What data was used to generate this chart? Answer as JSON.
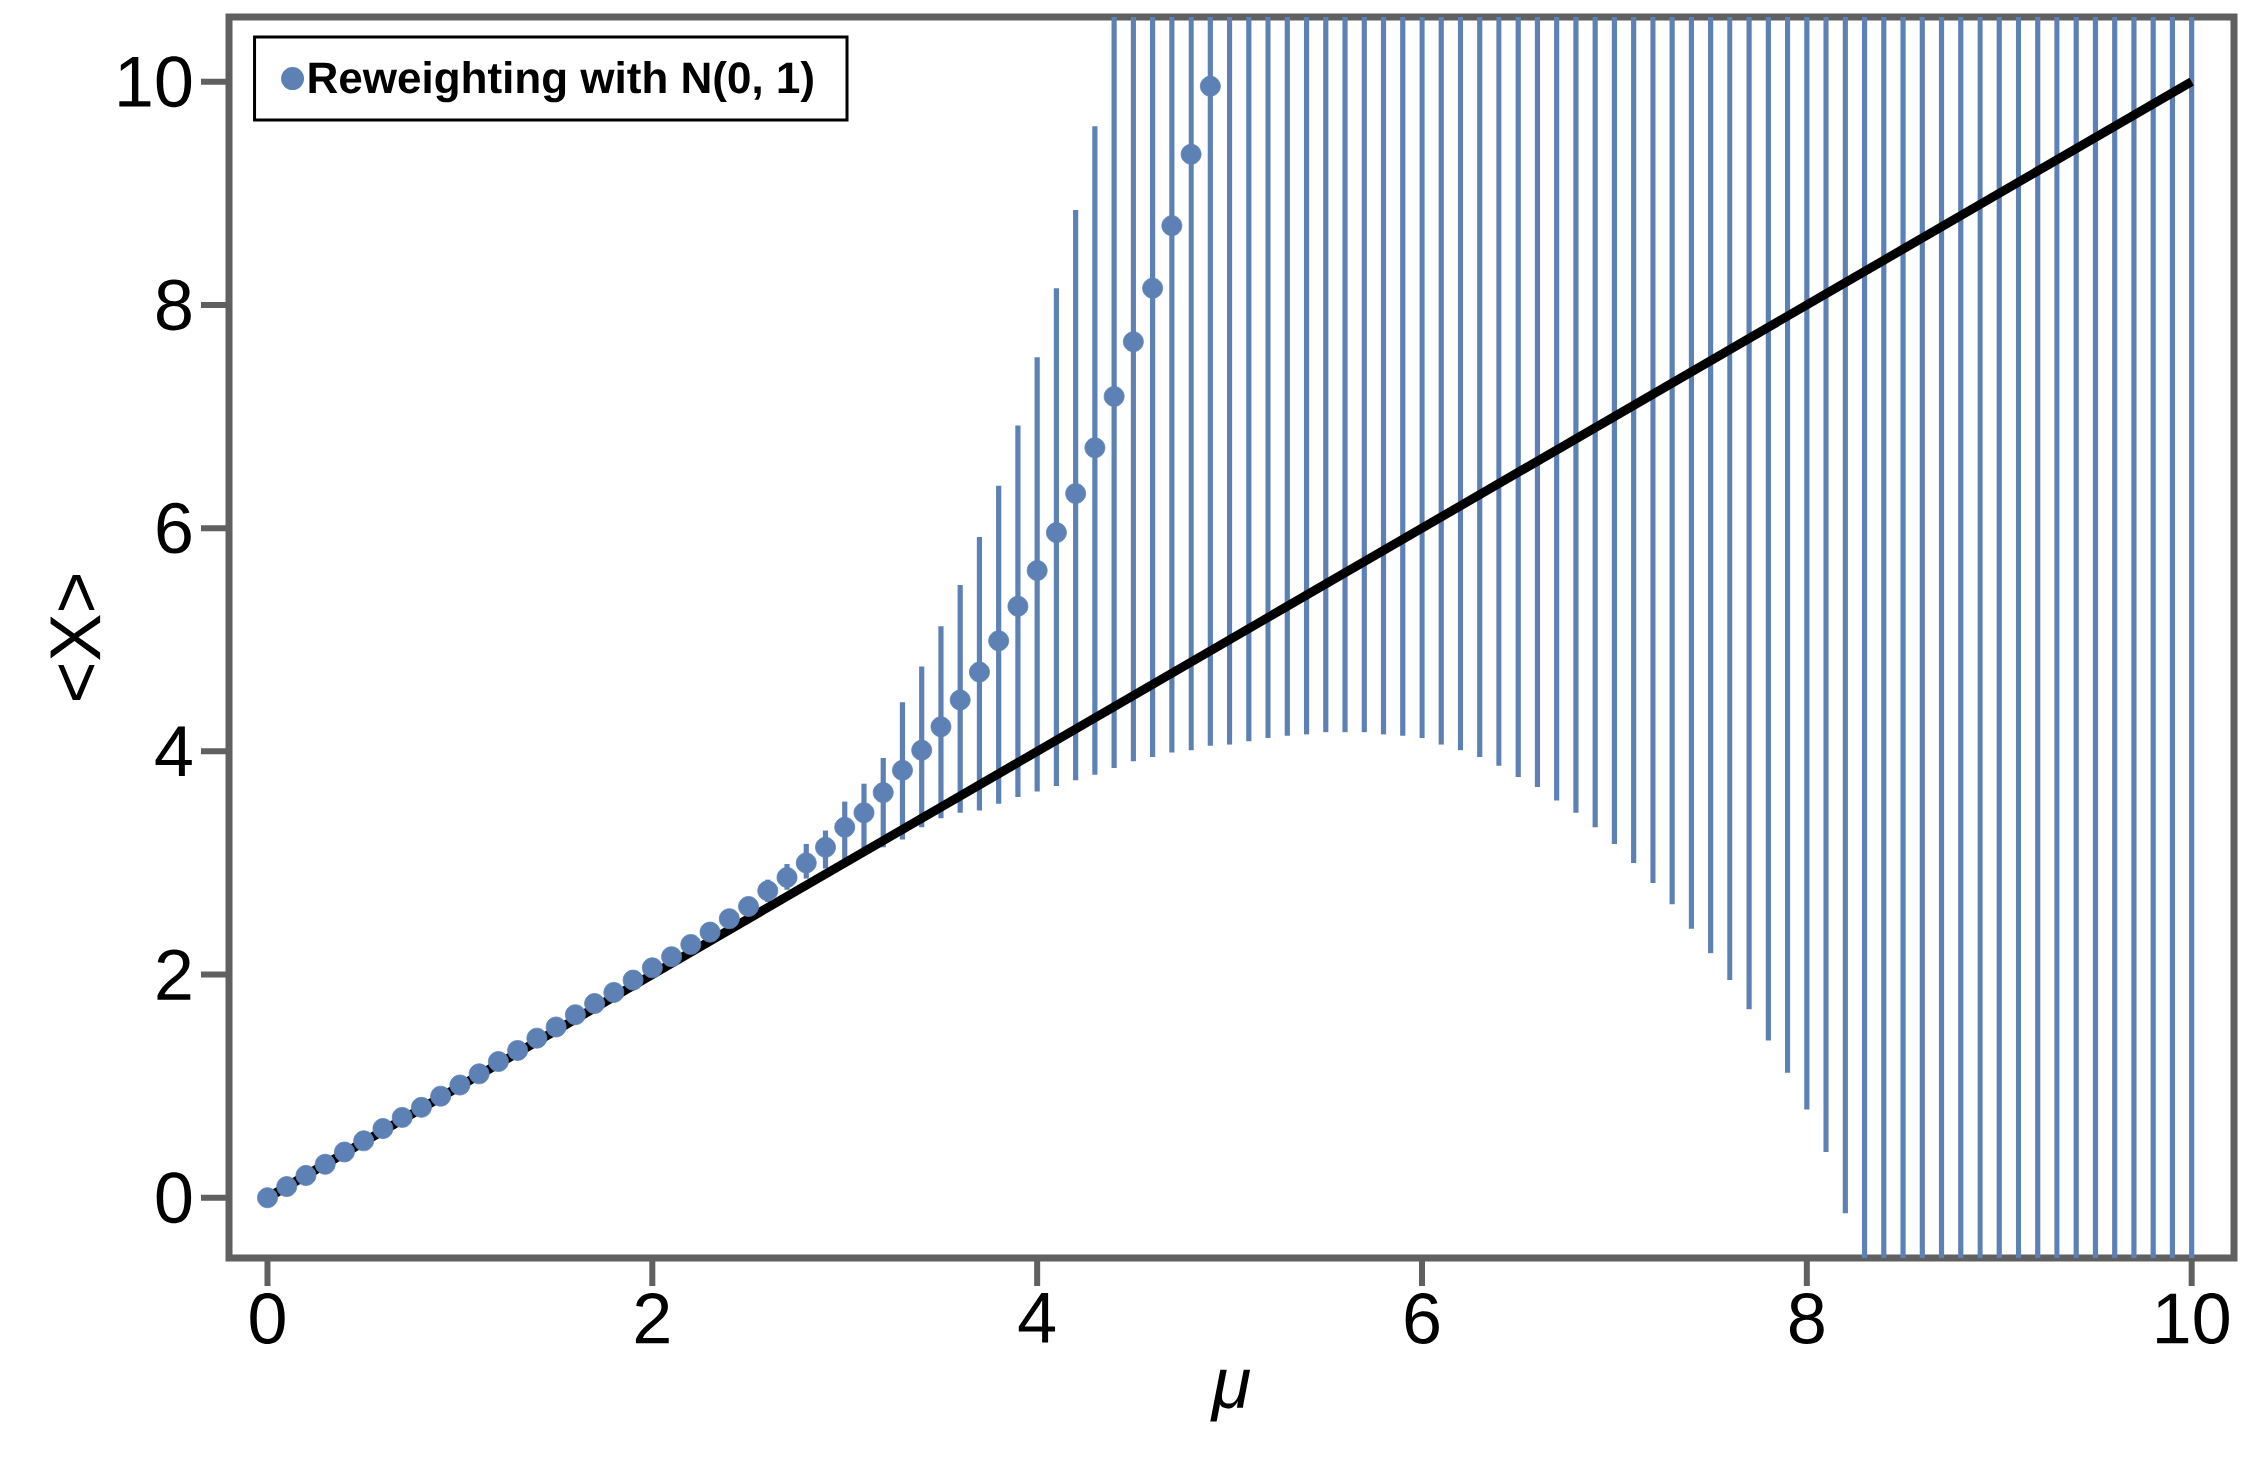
{
  "chart_data": {
    "type": "scatter",
    "xlabel": "μ",
    "ylabel": "<X>",
    "xlim": [
      -0.2,
      10.22
    ],
    "ylim": [
      -0.54,
      10.58
    ],
    "xticks": [
      0,
      2,
      4,
      6,
      8,
      10
    ],
    "yticks": [
      0,
      2,
      4,
      6,
      8,
      10
    ],
    "legend": "top left",
    "series": [
      {
        "name": "Reweighting with N(0, 1)",
        "color": "#5e81b5",
        "marker": "circle",
        "x": [
          0,
          0.1,
          0.2,
          0.3,
          0.4,
          0.5,
          0.6,
          0.7,
          0.8,
          0.9,
          1.0,
          1.1,
          1.2,
          1.3,
          1.4,
          1.5,
          1.6,
          1.7,
          1.8,
          1.9,
          2.0,
          2.1,
          2.2,
          2.3,
          2.4,
          2.5,
          2.6,
          2.7,
          2.8,
          2.9,
          3.0,
          3.1,
          3.2,
          3.3,
          3.4,
          3.5,
          3.6,
          3.7,
          3.8,
          3.9,
          4.0,
          4.1,
          4.2,
          4.3,
          4.4,
          4.5,
          4.6,
          4.7,
          4.8,
          4.9
        ],
        "values": [
          0,
          0.1,
          0.2,
          0.3,
          0.41,
          0.51,
          0.62,
          0.72,
          0.81,
          0.91,
          1.01,
          1.11,
          1.22,
          1.32,
          1.43,
          1.53,
          1.64,
          1.74,
          1.84,
          1.95,
          2.06,
          2.16,
          2.27,
          2.38,
          2.5,
          2.61,
          2.75,
          2.87,
          3.0,
          3.14,
          3.32,
          3.45,
          3.63,
          3.83,
          4.01,
          4.22,
          4.46,
          4.71,
          4.99,
          5.3,
          5.62,
          5.96,
          6.31,
          6.72,
          7.18,
          7.67,
          8.15,
          8.71,
          9.35,
          9.96
        ],
        "errors": [
          null,
          null,
          null,
          null,
          null,
          null,
          null,
          null,
          null,
          null,
          null,
          null,
          null,
          null,
          null,
          null,
          null,
          null,
          null,
          null,
          null,
          null,
          null,
          null,
          null,
          null,
          [
            2.65,
            2.85
          ],
          [
            2.76,
            2.99
          ],
          [
            2.86,
            3.17
          ],
          [
            2.95,
            3.29
          ],
          [
            3.01,
            3.55
          ],
          [
            3.08,
            3.71
          ],
          [
            3.14,
            3.94
          ],
          [
            3.21,
            4.44
          ],
          [
            3.32,
            4.76
          ],
          [
            3.4,
            5.12
          ],
          [
            3.45,
            5.49
          ],
          [
            3.47,
            5.92
          ],
          [
            3.53,
            6.38
          ],
          [
            3.59,
            6.92
          ],
          [
            3.64,
            7.53
          ],
          [
            3.69,
            8.15
          ],
          [
            3.74,
            8.85
          ],
          [
            3.79,
            9.6
          ],
          [
            3.85,
            10.58
          ],
          [
            3.91,
            10.58
          ],
          [
            3.95,
            10.58
          ],
          [
            3.99,
            10.58
          ],
          [
            4.01,
            10.58
          ],
          [
            4.05,
            10.58
          ]
        ]
      },
      {
        "type": "line",
        "color": "#000000",
        "marker": "none",
        "line_style": "solid",
        "x": [
          0,
          10
        ],
        "values": [
          0,
          10
        ]
      },
      {
        "type": "bar",
        "color": "#5e81b5",
        "x": [
          5.0,
          5.1,
          5.2,
          5.3,
          5.4,
          5.5,
          5.6,
          5.7,
          5.8,
          5.9,
          6.0,
          6.1,
          6.2,
          6.3,
          6.4,
          6.5,
          6.6,
          6.7,
          6.8,
          6.9,
          7.0,
          7.1,
          7.2,
          7.3,
          7.4,
          7.5,
          7.6,
          7.7,
          7.8,
          7.9,
          8.0,
          8.1,
          8.2,
          8.3,
          8.4,
          8.5,
          8.6,
          8.7,
          8.8,
          8.9,
          9.0,
          9.1,
          9.2,
          9.3,
          9.4,
          9.5,
          9.6,
          9.7,
          9.8,
          9.9,
          10.0
        ],
        "base": [
          4.06,
          4.09,
          4.12,
          4.14,
          4.15,
          4.17,
          4.17,
          4.17,
          4.15,
          4.14,
          4.12,
          4.06,
          4.01,
          3.95,
          3.87,
          3.77,
          3.68,
          3.56,
          3.45,
          3.32,
          3.17,
          3.0,
          2.82,
          2.63,
          2.41,
          2.19,
          1.95,
          1.69,
          1.41,
          1.12,
          0.79,
          0.41,
          -0.14,
          -0.54,
          -0.54,
          -0.54,
          -0.54,
          -0.54,
          -0.54,
          -0.54,
          -0.54,
          -0.54,
          -0.54,
          -0.54,
          -0.54,
          -0.54,
          -0.54,
          -0.54,
          -0.54,
          -0.54,
          -0.54
        ],
        "values": [
          6.52,
          6.49,
          6.46,
          6.44,
          6.43,
          6.41,
          6.41,
          6.41,
          6.43,
          6.44,
          6.46,
          6.52,
          6.57,
          6.63,
          6.71,
          6.81,
          6.9,
          7.02,
          7.13,
          7.26,
          7.41,
          7.58,
          7.76,
          7.95,
          8.17,
          8.39,
          8.63,
          8.89,
          9.17,
          9.46,
          9.79,
          10.17,
          10.72,
          11.12,
          11.12,
          11.12,
          11.12,
          11.12,
          11.12,
          11.12,
          11.12,
          11.12,
          11.12,
          11.12,
          11.12,
          11.12,
          11.12,
          11.12,
          11.12,
          11.12,
          11.12
        ]
      }
    ]
  }
}
